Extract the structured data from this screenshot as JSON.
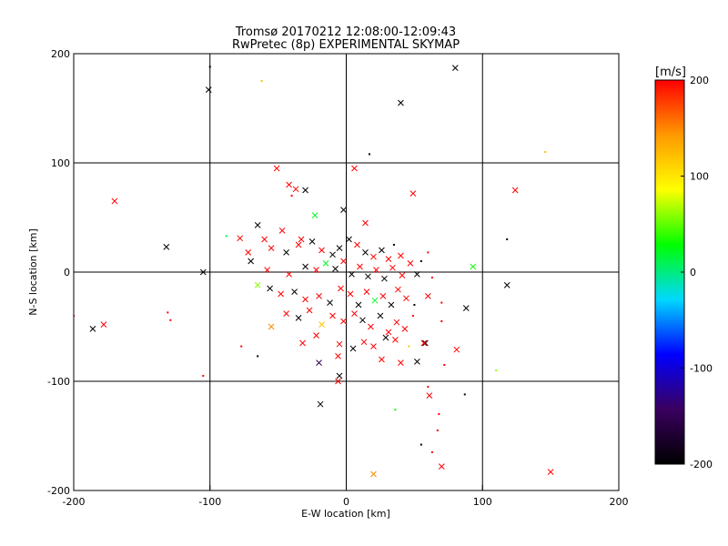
{
  "chart_data": {
    "type": "scatter",
    "title": "Tromsø 20170212 12:08:00-12:09:43",
    "subtitle": "RwPretec (8p) EXPERIMENTAL SKYMAP",
    "xlabel": "E-W location [km]",
    "ylabel": "N-S location [km]",
    "xlim": [
      -200,
      200
    ],
    "ylim": [
      -200,
      200
    ],
    "grid": true,
    "xticks": [
      -200,
      -100,
      0,
      100,
      200
    ],
    "yticks": [
      -200,
      -100,
      0,
      100,
      200
    ],
    "colorbar": {
      "label": "[m/s]",
      "range": [
        -200,
        200
      ],
      "ticks": [
        200,
        100,
        0,
        -100,
        -200
      ],
      "colormap": [
        "#000000",
        "#3a0060",
        "#0000ff",
        "#00d8ff",
        "#00ff00",
        "#ffff00",
        "#ff9900",
        "#ff0000"
      ]
    },
    "points": [
      {
        "x": -101,
        "y": 167,
        "v": -200,
        "m": "x"
      },
      {
        "x": 80,
        "y": 187,
        "v": -200,
        "m": "x"
      },
      {
        "x": 40,
        "y": 155,
        "v": -200,
        "m": "x"
      },
      {
        "x": -100,
        "y": 188,
        "v": -200,
        "m": "d"
      },
      {
        "x": -62,
        "y": 175,
        "v": 120,
        "m": "d"
      },
      {
        "x": 146,
        "y": 110,
        "v": 120,
        "m": "d"
      },
      {
        "x": 17,
        "y": 108,
        "v": -200,
        "m": "d"
      },
      {
        "x": -170,
        "y": 65,
        "v": 200,
        "m": "x"
      },
      {
        "x": -51,
        "y": 95,
        "v": 200,
        "m": "x"
      },
      {
        "x": 6,
        "y": 95,
        "v": 200,
        "m": "x"
      },
      {
        "x": 124,
        "y": 75,
        "v": 200,
        "m": "x"
      },
      {
        "x": 49,
        "y": 72,
        "v": 200,
        "m": "x"
      },
      {
        "x": -42,
        "y": 80,
        "v": 200,
        "m": "x"
      },
      {
        "x": -37,
        "y": 76,
        "v": 200,
        "m": "x"
      },
      {
        "x": -30,
        "y": 75,
        "v": -200,
        "m": "x"
      },
      {
        "x": -40,
        "y": 70,
        "v": 200,
        "m": "d"
      },
      {
        "x": -23,
        "y": 52,
        "v": 20,
        "m": "x"
      },
      {
        "x": -2,
        "y": 57,
        "v": -200,
        "m": "x"
      },
      {
        "x": 14,
        "y": 45,
        "v": 200,
        "m": "x"
      },
      {
        "x": -65,
        "y": 43,
        "v": -200,
        "m": "x"
      },
      {
        "x": -88,
        "y": 33,
        "v": 10,
        "m": "d"
      },
      {
        "x": -78,
        "y": 31,
        "v": 200,
        "m": "x"
      },
      {
        "x": -60,
        "y": 30,
        "v": 200,
        "m": "x"
      },
      {
        "x": -47,
        "y": 38,
        "v": 200,
        "m": "x"
      },
      {
        "x": -33,
        "y": 30,
        "v": 200,
        "m": "x"
      },
      {
        "x": -132,
        "y": 23,
        "v": -200,
        "m": "x"
      },
      {
        "x": -72,
        "y": 18,
        "v": 200,
        "m": "x"
      },
      {
        "x": -70,
        "y": 10,
        "v": -200,
        "m": "x"
      },
      {
        "x": -55,
        "y": 22,
        "v": 200,
        "m": "x"
      },
      {
        "x": -44,
        "y": 18,
        "v": -200,
        "m": "x"
      },
      {
        "x": -35,
        "y": 25,
        "v": 200,
        "m": "x"
      },
      {
        "x": -25,
        "y": 28,
        "v": -200,
        "m": "x"
      },
      {
        "x": -18,
        "y": 20,
        "v": 200,
        "m": "x"
      },
      {
        "x": -10,
        "y": 16,
        "v": -200,
        "m": "x"
      },
      {
        "x": -5,
        "y": 22,
        "v": -200,
        "m": "x"
      },
      {
        "x": 2,
        "y": 30,
        "v": -200,
        "m": "x"
      },
      {
        "x": 8,
        "y": 25,
        "v": 200,
        "m": "x"
      },
      {
        "x": 14,
        "y": 18,
        "v": -200,
        "m": "x"
      },
      {
        "x": 20,
        "y": 14,
        "v": 200,
        "m": "x"
      },
      {
        "x": 26,
        "y": 20,
        "v": -200,
        "m": "x"
      },
      {
        "x": 31,
        "y": 12,
        "v": 200,
        "m": "x"
      },
      {
        "x": 35,
        "y": 25,
        "v": -200,
        "m": "d"
      },
      {
        "x": 40,
        "y": 15,
        "v": 200,
        "m": "x"
      },
      {
        "x": 47,
        "y": 8,
        "v": 200,
        "m": "x"
      },
      {
        "x": 55,
        "y": 10,
        "v": -200,
        "m": "d"
      },
      {
        "x": 60,
        "y": 18,
        "v": 200,
        "m": "d"
      },
      {
        "x": 118,
        "y": 30,
        "v": -200,
        "m": "d"
      },
      {
        "x": 93,
        "y": 5,
        "v": 30,
        "m": "x"
      },
      {
        "x": -105,
        "y": 0,
        "v": -200,
        "m": "x"
      },
      {
        "x": -58,
        "y": 2,
        "v": 200,
        "m": "x"
      },
      {
        "x": -42,
        "y": -2,
        "v": 200,
        "m": "x"
      },
      {
        "x": -30,
        "y": 5,
        "v": -200,
        "m": "x"
      },
      {
        "x": -22,
        "y": 2,
        "v": 200,
        "m": "x"
      },
      {
        "x": -15,
        "y": 8,
        "v": 20,
        "m": "x"
      },
      {
        "x": -8,
        "y": 3,
        "v": -200,
        "m": "x"
      },
      {
        "x": -2,
        "y": 10,
        "v": 200,
        "m": "x"
      },
      {
        "x": 4,
        "y": -2,
        "v": -200,
        "m": "x"
      },
      {
        "x": 10,
        "y": 5,
        "v": 200,
        "m": "x"
      },
      {
        "x": 16,
        "y": -4,
        "v": -200,
        "m": "x"
      },
      {
        "x": 22,
        "y": 2,
        "v": 200,
        "m": "x"
      },
      {
        "x": 28,
        "y": -6,
        "v": -200,
        "m": "x"
      },
      {
        "x": 34,
        "y": 4,
        "v": 200,
        "m": "x"
      },
      {
        "x": 41,
        "y": -3,
        "v": 200,
        "m": "x"
      },
      {
        "x": 52,
        "y": -2,
        "v": -200,
        "m": "x"
      },
      {
        "x": 63,
        "y": -5,
        "v": 200,
        "m": "d"
      },
      {
        "x": 118,
        "y": -12,
        "v": -200,
        "m": "x"
      },
      {
        "x": -65,
        "y": -12,
        "v": 60,
        "m": "x"
      },
      {
        "x": -56,
        "y": -15,
        "v": -200,
        "m": "x"
      },
      {
        "x": -48,
        "y": -20,
        "v": 200,
        "m": "x"
      },
      {
        "x": -38,
        "y": -18,
        "v": -200,
        "m": "x"
      },
      {
        "x": -30,
        "y": -25,
        "v": 200,
        "m": "x"
      },
      {
        "x": -20,
        "y": -22,
        "v": 200,
        "m": "x"
      },
      {
        "x": -12,
        "y": -28,
        "v": -200,
        "m": "x"
      },
      {
        "x": -4,
        "y": -15,
        "v": 200,
        "m": "x"
      },
      {
        "x": 3,
        "y": -20,
        "v": 200,
        "m": "x"
      },
      {
        "x": 9,
        "y": -30,
        "v": -200,
        "m": "x"
      },
      {
        "x": 15,
        "y": -18,
        "v": 200,
        "m": "x"
      },
      {
        "x": 21,
        "y": -26,
        "v": 20,
        "m": "x"
      },
      {
        "x": 27,
        "y": -22,
        "v": 200,
        "m": "x"
      },
      {
        "x": 33,
        "y": -30,
        "v": -200,
        "m": "x"
      },
      {
        "x": 38,
        "y": -16,
        "v": 200,
        "m": "x"
      },
      {
        "x": 44,
        "y": -24,
        "v": 200,
        "m": "x"
      },
      {
        "x": 50,
        "y": -30,
        "v": -200,
        "m": "d"
      },
      {
        "x": 60,
        "y": -22,
        "v": 200,
        "m": "x"
      },
      {
        "x": 70,
        "y": -28,
        "v": 200,
        "m": "d"
      },
      {
        "x": 88,
        "y": -33,
        "v": -200,
        "m": "x"
      },
      {
        "x": -200,
        "y": -40,
        "v": 200,
        "m": "d"
      },
      {
        "x": -178,
        "y": -48,
        "v": 200,
        "m": "x"
      },
      {
        "x": -186,
        "y": -52,
        "v": -200,
        "m": "x"
      },
      {
        "x": -131,
        "y": -37,
        "v": 200,
        "m": "d"
      },
      {
        "x": -129,
        "y": -44,
        "v": 200,
        "m": "d"
      },
      {
        "x": -55,
        "y": -50,
        "v": 150,
        "m": "x"
      },
      {
        "x": -44,
        "y": -38,
        "v": 200,
        "m": "x"
      },
      {
        "x": -35,
        "y": -42,
        "v": -200,
        "m": "x"
      },
      {
        "x": -27,
        "y": -35,
        "v": 200,
        "m": "x"
      },
      {
        "x": -18,
        "y": -48,
        "v": 120,
        "m": "x"
      },
      {
        "x": -10,
        "y": -40,
        "v": 200,
        "m": "x"
      },
      {
        "x": -2,
        "y": -45,
        "v": 200,
        "m": "x"
      },
      {
        "x": 6,
        "y": -38,
        "v": 200,
        "m": "x"
      },
      {
        "x": 12,
        "y": -44,
        "v": -200,
        "m": "x"
      },
      {
        "x": 18,
        "y": -50,
        "v": 200,
        "m": "x"
      },
      {
        "x": 25,
        "y": -40,
        "v": -200,
        "m": "x"
      },
      {
        "x": 31,
        "y": -55,
        "v": 200,
        "m": "x"
      },
      {
        "x": 37,
        "y": -46,
        "v": 200,
        "m": "x"
      },
      {
        "x": 43,
        "y": -52,
        "v": 200,
        "m": "x"
      },
      {
        "x": 49,
        "y": -40,
        "v": 200,
        "m": "d"
      },
      {
        "x": 58,
        "y": -65,
        "v": -200,
        "m": "x"
      },
      {
        "x": 70,
        "y": -45,
        "v": 200,
        "m": "d"
      },
      {
        "x": -77,
        "y": -68,
        "v": 200,
        "m": "d"
      },
      {
        "x": -65,
        "y": -77,
        "v": -200,
        "m": "d"
      },
      {
        "x": -32,
        "y": -65,
        "v": 200,
        "m": "x"
      },
      {
        "x": -22,
        "y": -58,
        "v": 200,
        "m": "x"
      },
      {
        "x": -5,
        "y": -66,
        "v": 200,
        "m": "x"
      },
      {
        "x": 5,
        "y": -70,
        "v": -200,
        "m": "x"
      },
      {
        "x": 13,
        "y": -64,
        "v": 200,
        "m": "x"
      },
      {
        "x": 20,
        "y": -68,
        "v": 200,
        "m": "x"
      },
      {
        "x": 29,
        "y": -60,
        "v": -200,
        "m": "x"
      },
      {
        "x": 36,
        "y": -62,
        "v": 200,
        "m": "x"
      },
      {
        "x": 46,
        "y": -68,
        "v": 120,
        "m": "d"
      },
      {
        "x": 57,
        "y": -65,
        "v": 200,
        "m": "x"
      },
      {
        "x": 81,
        "y": -71,
        "v": 200,
        "m": "x"
      },
      {
        "x": -20,
        "y": -83,
        "v": -150,
        "m": "x"
      },
      {
        "x": -6,
        "y": -77,
        "v": 200,
        "m": "x"
      },
      {
        "x": 26,
        "y": -80,
        "v": 200,
        "m": "x"
      },
      {
        "x": 40,
        "y": -83,
        "v": 200,
        "m": "x"
      },
      {
        "x": 52,
        "y": -82,
        "v": -200,
        "m": "x"
      },
      {
        "x": 72,
        "y": -85,
        "v": 200,
        "m": "d"
      },
      {
        "x": -105,
        "y": -95,
        "v": 200,
        "m": "d"
      },
      {
        "x": -5,
        "y": -95,
        "v": -200,
        "m": "x"
      },
      {
        "x": -6,
        "y": -100,
        "v": 200,
        "m": "x"
      },
      {
        "x": 110,
        "y": -90,
        "v": 60,
        "m": "d"
      },
      {
        "x": 60,
        "y": -105,
        "v": 200,
        "m": "d"
      },
      {
        "x": 87,
        "y": -112,
        "v": -200,
        "m": "d"
      },
      {
        "x": -19,
        "y": -121,
        "v": -200,
        "m": "x"
      },
      {
        "x": 61,
        "y": -113,
        "v": 200,
        "m": "x"
      },
      {
        "x": 36,
        "y": -126,
        "v": 30,
        "m": "d"
      },
      {
        "x": 68,
        "y": -130,
        "v": 200,
        "m": "d"
      },
      {
        "x": 67,
        "y": -145,
        "v": 200,
        "m": "d"
      },
      {
        "x": 55,
        "y": -158,
        "v": -200,
        "m": "d"
      },
      {
        "x": 63,
        "y": -165,
        "v": 200,
        "m": "d"
      },
      {
        "x": 70,
        "y": -178,
        "v": 200,
        "m": "x"
      },
      {
        "x": 20,
        "y": -185,
        "v": 150,
        "m": "x"
      },
      {
        "x": 150,
        "y": -183,
        "v": 200,
        "m": "x"
      }
    ]
  }
}
